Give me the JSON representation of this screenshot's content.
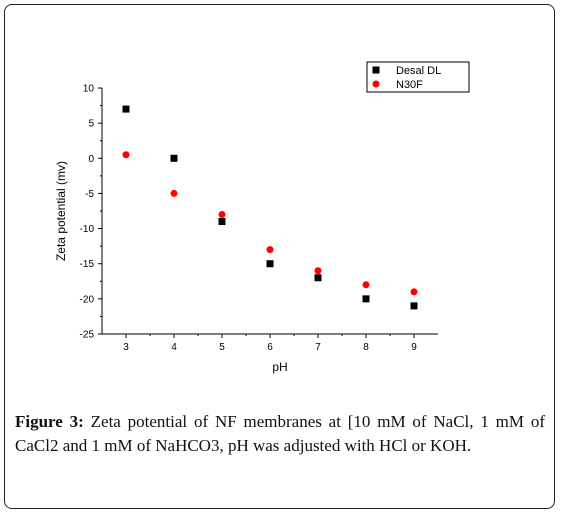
{
  "chart_data": {
    "type": "scatter",
    "xlabel": "pH",
    "ylabel": "Zeta potential (mv)",
    "xlim": [
      2.5,
      9.5
    ],
    "ylim": [
      -25,
      10
    ],
    "xticks": [
      3,
      4,
      5,
      6,
      7,
      8,
      9
    ],
    "yticks": [
      10,
      5,
      0,
      -5,
      -10,
      -15,
      -20,
      -25
    ],
    "grid": false,
    "legend_position": "top-right",
    "series": [
      {
        "name": "Desal DL",
        "marker": "square",
        "color": "#000000",
        "x": [
          3,
          4,
          5,
          6,
          7,
          8,
          9
        ],
        "y": [
          7,
          0,
          -9,
          -15,
          -17,
          -20,
          -21
        ]
      },
      {
        "name": "N30F",
        "marker": "circle",
        "color": "#ff0000",
        "x": [
          3,
          4,
          5,
          6,
          7,
          8,
          9
        ],
        "y": [
          0.5,
          -5,
          -8,
          -13,
          -16,
          -18,
          -19
        ]
      }
    ]
  },
  "caption": {
    "label": "Figure 3:",
    "text": " Zeta potential of NF membranes at [10 mM of NaCl, 1 mM of CaCl2 and 1 mM of NaHCO3, pH was adjusted with HCl or KOH."
  }
}
